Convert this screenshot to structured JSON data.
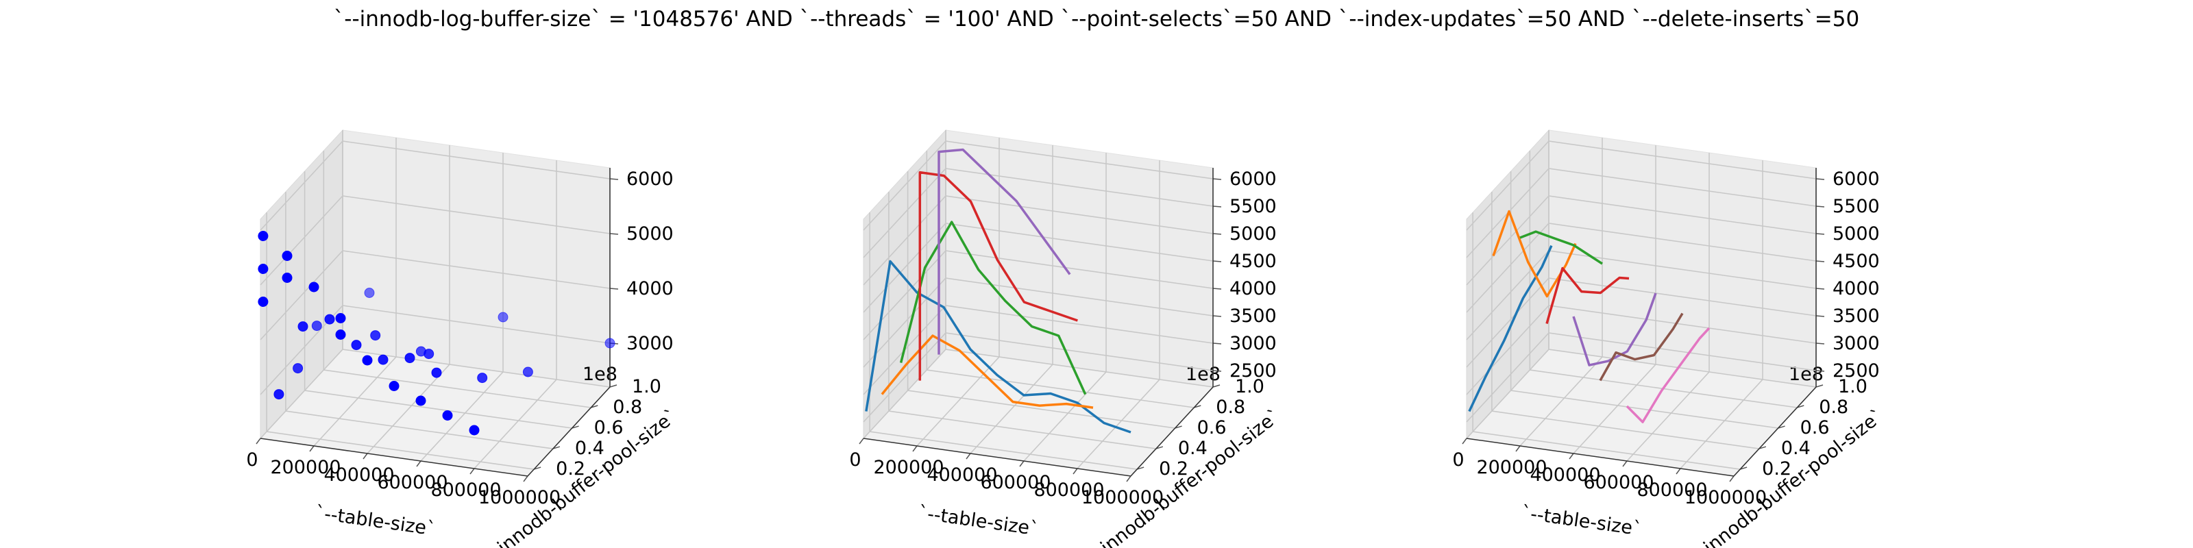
{
  "figure": {
    "title": "`--innodb-log-buffer-size` = '1048576' AND `--threads` = '100'  AND `--point-selects`=50 AND `--index-updates`=50 AND `--delete-inserts`=50"
  },
  "chart_data": [
    {
      "type": "scatter3d",
      "xlabel": "`--table-size`",
      "ylabel": "`--innodb-buffer-pool-size`",
      "zlabel": "",
      "xticks": [
        "0",
        "200000",
        "400000",
        "600000",
        "800000",
        "1000000"
      ],
      "yticks": [
        "0.2",
        "0.4",
        "0.6",
        "0.8",
        "1.0"
      ],
      "y_offset_text": "1e8",
      "zticks": [
        "3000",
        "4000",
        "5000",
        "6000"
      ],
      "xlim": [
        0,
        1000000
      ],
      "ylim": [
        0.134,
        1.0
      ],
      "zlim": [
        2200,
        6200
      ],
      "marker_color": "#0000ff",
      "points": [
        {
          "x": 10000,
          "y": 0.134,
          "z": 5900
        },
        {
          "x": 10000,
          "y": 0.134,
          "z": 5300
        },
        {
          "x": 10000,
          "y": 0.134,
          "z": 4700
        },
        {
          "x": 100000,
          "y": 0.134,
          "z": 5200
        },
        {
          "x": 100000,
          "y": 0.134,
          "z": 5600
        },
        {
          "x": 200000,
          "y": 0.134,
          "z": 5100
        },
        {
          "x": 300000,
          "y": 0.134,
          "z": 4300
        },
        {
          "x": 300000,
          "y": 0.134,
          "z": 4600
        },
        {
          "x": 400000,
          "y": 0.134,
          "z": 3900
        },
        {
          "x": 500000,
          "y": 0.134,
          "z": 3500
        },
        {
          "x": 600000,
          "y": 0.134,
          "z": 3300
        },
        {
          "x": 700000,
          "y": 0.134,
          "z": 3100
        },
        {
          "x": 800000,
          "y": 0.134,
          "z": 2900
        },
        {
          "x": 10000,
          "y": 0.3,
          "z": 2700
        },
        {
          "x": 100000,
          "y": 0.3,
          "z": 4000
        },
        {
          "x": 200000,
          "y": 0.3,
          "z": 4200
        },
        {
          "x": 300000,
          "y": 0.3,
          "z": 3800
        },
        {
          "x": 400000,
          "y": 0.3,
          "z": 3600
        },
        {
          "x": 500000,
          "y": 0.3,
          "z": 3700
        },
        {
          "x": 600000,
          "y": 0.3,
          "z": 3500
        },
        {
          "x": 10000,
          "y": 0.5,
          "z": 2800
        },
        {
          "x": 300000,
          "y": 0.5,
          "z": 3600
        },
        {
          "x": 500000,
          "y": 0.5,
          "z": 3400
        },
        {
          "x": 700000,
          "y": 0.5,
          "z": 3100
        },
        {
          "x": 10000,
          "y": 0.7,
          "z": 3200
        },
        {
          "x": 400000,
          "y": 0.7,
          "z": 3000
        },
        {
          "x": 800000,
          "y": 0.7,
          "z": 2900
        },
        {
          "x": 100000,
          "y": 1.0,
          "z": 3300
        },
        {
          "x": 600000,
          "y": 1.0,
          "z": 3200
        },
        {
          "x": 1000000,
          "y": 1.0,
          "z": 3000
        }
      ]
    },
    {
      "type": "line3d",
      "xlabel": "`--table-size`",
      "ylabel": "`--innodb-buffer-pool-size`",
      "zlabel": "",
      "xticks": [
        "0",
        "200000",
        "400000",
        "600000",
        "800000",
        "1000000"
      ],
      "yticks": [
        "0.2",
        "0.4",
        "0.6",
        "0.8",
        "1.0"
      ],
      "y_offset_text": "1e8",
      "zticks": [
        "2500",
        "3000",
        "3500",
        "4000",
        "4500",
        "5000",
        "5500",
        "6000"
      ],
      "xlim": [
        0,
        1000000
      ],
      "ylim": [
        0.134,
        1.0
      ],
      "zlim": [
        2200,
        6200
      ],
      "series": [
        {
          "color": "#1f77b4",
          "x": [
            10000,
            100000,
            200000,
            300000,
            400000,
            500000,
            600000,
            700000,
            800000,
            900000,
            1000000
          ],
          "y": [
            0.134,
            0.134,
            0.134,
            0.134,
            0.134,
            0.134,
            0.134,
            0.134,
            0.134,
            0.134,
            0.134
          ],
          "z": [
            2700,
            5500,
            5000,
            4800,
            4100,
            3700,
            3400,
            3500,
            3400,
            3100,
            3000
          ]
        },
        {
          "color": "#ff7f0e",
          "x": [
            10000,
            100000,
            200000,
            300000,
            400000,
            500000,
            600000,
            700000,
            800000
          ],
          "y": [
            0.3,
            0.3,
            0.3,
            0.3,
            0.3,
            0.3,
            0.3,
            0.3,
            0.3
          ],
          "z": [
            2700,
            3300,
            3900,
            3700,
            3300,
            2900,
            2900,
            3000,
            3000
          ]
        },
        {
          "color": "#2ca02c",
          "x": [
            10000,
            100000,
            200000,
            300000,
            400000,
            500000,
            600000,
            700000
          ],
          "y": [
            0.5,
            0.5,
            0.5,
            0.5,
            0.5,
            0.5,
            0.5,
            0.5
          ],
          "z": [
            2900,
            4700,
            5600,
            4800,
            4300,
            3900,
            3800,
            2800
          ]
        },
        {
          "color": "#d62728",
          "x": [
            10000,
            10000,
            100000,
            200000,
            300000,
            400000,
            500000,
            600000
          ],
          "y": [
            0.7,
            0.7,
            0.7,
            0.7,
            0.7,
            0.7,
            0.7,
            0.7
          ],
          "z": [
            2200,
            6000,
            6000,
            5600,
            4600,
            3900,
            3800,
            3700
          ]
        },
        {
          "color": "#9467bd",
          "x": [
            10000,
            10000,
            100000,
            200000,
            300000,
            400000,
            500000
          ],
          "y": [
            0.9,
            0.9,
            0.9,
            0.9,
            0.9,
            0.9,
            0.9
          ],
          "z": [
            2300,
            6000,
            6100,
            5700,
            5300,
            4700,
            4100
          ]
        }
      ]
    },
    {
      "type": "line3d",
      "xlabel": "`--table-size`",
      "ylabel": "`--innodb-buffer-pool-size`",
      "zlabel": "",
      "xticks": [
        "0",
        "200000",
        "400000",
        "600000",
        "800000",
        "1000000"
      ],
      "yticks": [
        "0.2",
        "0.4",
        "0.6",
        "0.8",
        "1.0"
      ],
      "y_offset_text": "1e8",
      "zticks": [
        "2500",
        "3000",
        "3500",
        "4000",
        "4500",
        "5000",
        "5500",
        "6000"
      ],
      "xlim": [
        0,
        1000000
      ],
      "ylim": [
        0.134,
        1.0
      ],
      "zlim": [
        2200,
        6200
      ],
      "series": [
        {
          "color": "#1f77b4",
          "x": [
            10000,
            10000,
            10000,
            10000,
            10000,
            10000
          ],
          "y": [
            0.134,
            0.3,
            0.5,
            0.7,
            0.9,
            1.0
          ],
          "z": [
            2700,
            3000,
            3300,
            3700,
            3900,
            4100
          ]
        },
        {
          "color": "#ff7f0e",
          "x": [
            100000,
            100000,
            100000,
            100000,
            100000,
            100000
          ],
          "y": [
            0.134,
            0.3,
            0.5,
            0.7,
            0.9,
            1.0
          ],
          "z": [
            5600,
            6100,
            4800,
            3800,
            4000,
            4200
          ]
        },
        {
          "color": "#2ca02c",
          "x": [
            200000,
            200000,
            200000,
            200000,
            200000,
            200000
          ],
          "y": [
            0.134,
            0.3,
            0.5,
            0.7,
            0.9,
            1.0
          ],
          "z": [
            6000,
            5800,
            5300,
            4800,
            4200,
            3900
          ]
        },
        {
          "color": "#d62728",
          "x": [
            300000,
            300000,
            300000,
            300000,
            300000,
            300000
          ],
          "y": [
            0.134,
            0.3,
            0.5,
            0.7,
            0.9,
            1.0
          ],
          "z": [
            4500,
            5200,
            4400,
            4000,
            3900,
            3700
          ]
        },
        {
          "color": "#9467bd",
          "x": [
            400000,
            400000,
            400000,
            400000,
            400000,
            400000
          ],
          "y": [
            0.134,
            0.3,
            0.5,
            0.7,
            0.9,
            1.0
          ],
          "z": [
            4700,
            3500,
            3200,
            3000,
            3200,
            3500
          ]
        },
        {
          "color": "#8c564b",
          "x": [
            500000,
            500000,
            500000,
            500000,
            500000,
            500000
          ],
          "y": [
            0.134,
            0.3,
            0.5,
            0.7,
            0.9,
            1.0
          ],
          "z": [
            3600,
            3800,
            3300,
            3000,
            3100,
            3200
          ]
        },
        {
          "color": "#e377c2",
          "x": [
            600000,
            600000,
            600000,
            600000,
            600000,
            600000
          ],
          "y": [
            0.134,
            0.3,
            0.5,
            0.7,
            0.9,
            1.0
          ],
          "z": [
            3200,
            2600,
            2800,
            2900,
            3000,
            3000
          ]
        }
      ]
    }
  ]
}
